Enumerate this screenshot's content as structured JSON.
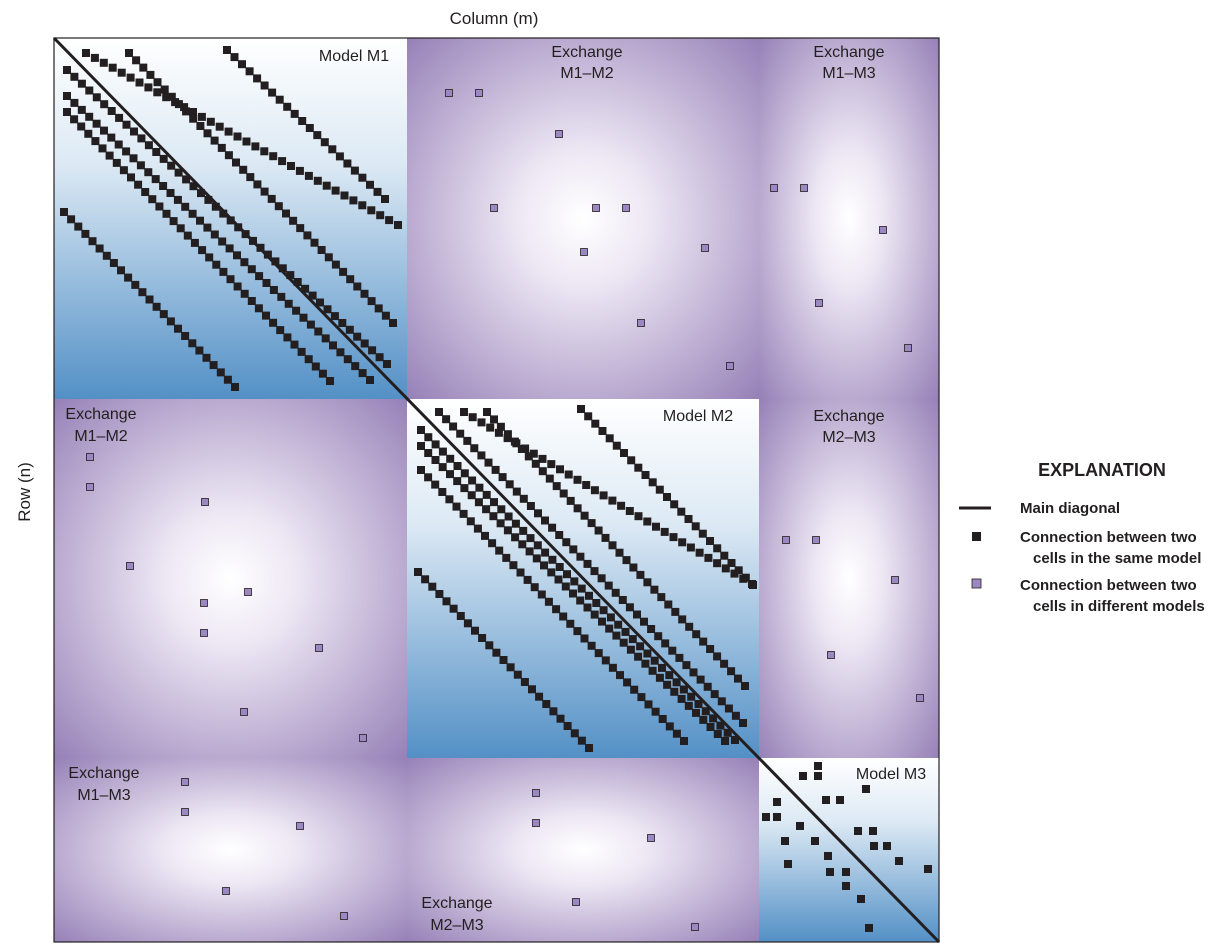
{
  "axes": {
    "column_title": "Column (m)",
    "row_title": "Row (n)"
  },
  "blocks": {
    "model_m1": "Model M1",
    "model_m2": "Model M2",
    "model_m3": "Model M3",
    "exchange_label_line1": "Exchange",
    "exchange_m1_m2_line2": "M1–M2",
    "exchange_m1_m3_line2": "M1–M3",
    "exchange_m2_m3_line2": "M2–M3"
  },
  "legend": {
    "title": "EXPLANATION",
    "main_diagonal": "Main diagonal",
    "same_model_line1": "Connection between two",
    "same_model_line2": "cells in the same model",
    "different_models_line1": "Connection between two",
    "different_models_line2": "cells in different models"
  },
  "colors": {
    "model_block_top": "#ffffff",
    "model_block_bottom": "#5390c6",
    "exchange_block_center": "#ffffff",
    "exchange_block_edge": "#8f78b2",
    "same_model_marker": "#231f20",
    "different_model_marker": "#9b88c2",
    "diagonal": "#231f20"
  }
}
